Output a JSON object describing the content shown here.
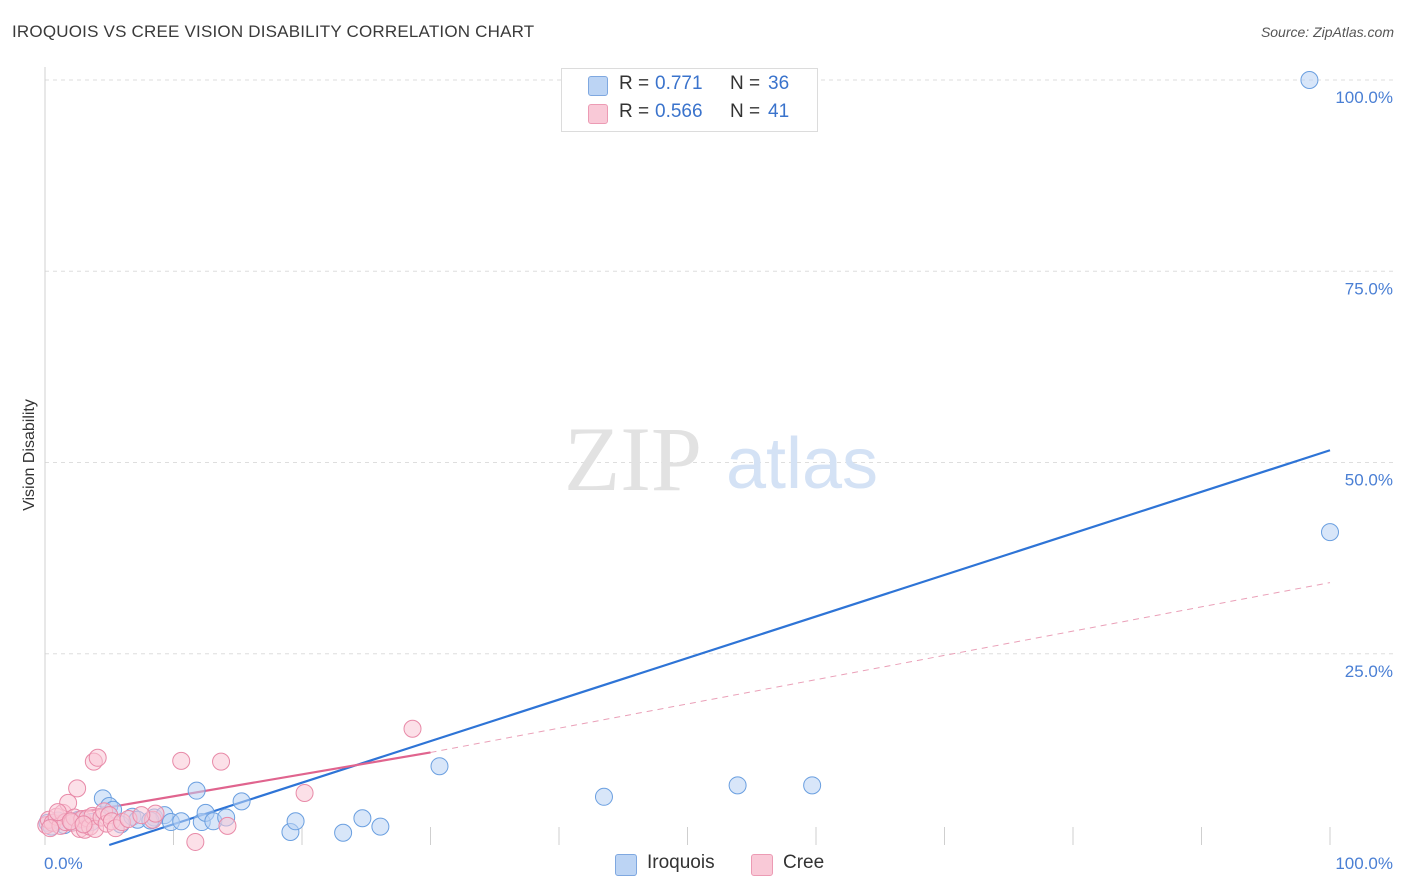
{
  "title": "IROQUOIS VS CREE VISION DISABILITY CORRELATION CHART",
  "source": "Source: ZipAtlas.com",
  "watermark": {
    "zip": "ZIP",
    "atlas": "atlas"
  },
  "legend": {
    "rows": [
      {
        "r_label": "R =",
        "r_value": "0.771",
        "n_label": "N =",
        "n_value": "36",
        "color": "#a9c8f2"
      },
      {
        "r_label": "R =",
        "r_value": "0.566",
        "n_label": "N =",
        "n_value": "41",
        "color": "#f7b8cb"
      }
    ]
  },
  "bottom_legend": [
    {
      "label": "Iroquois",
      "color": "#a9c8f2"
    },
    {
      "label": "Cree",
      "color": "#f7b8cb"
    }
  ],
  "chart_data": {
    "type": "scatter",
    "title": "IROQUOIS VS CREE VISION DISABILITY CORRELATION CHART",
    "xlabel": "",
    "ylabel": "Vision Disability",
    "xlim": [
      0,
      100
    ],
    "ylim": [
      0,
      100
    ],
    "x_tick_labels": [
      "0.0%",
      "100.0%"
    ],
    "y_tick_labels": [
      "100.0%",
      "75.0%",
      "50.0%",
      "25.0%"
    ],
    "y_tick_values": [
      100,
      75,
      50,
      25
    ],
    "grid": true,
    "series": [
      {
        "name": "Iroquois",
        "color": "#6a9fe0",
        "fill": "#b8d2f4",
        "points": [
          [
            0.2,
            2.9
          ],
          [
            1.0,
            3.2
          ],
          [
            1.5,
            2.6
          ],
          [
            2.2,
            3.0
          ],
          [
            3.1,
            2.7
          ],
          [
            3.6,
            3.0
          ],
          [
            4.5,
            6.1
          ],
          [
            5.0,
            5.1
          ],
          [
            5.3,
            4.6
          ],
          [
            5.9,
            2.7
          ],
          [
            6.8,
            3.7
          ],
          [
            7.2,
            3.3
          ],
          [
            8.5,
            3.6
          ],
          [
            9.3,
            3.9
          ],
          [
            9.8,
            3.0
          ],
          [
            10.6,
            3.1
          ],
          [
            11.8,
            7.1
          ],
          [
            12.2,
            3.0
          ],
          [
            12.5,
            4.2
          ],
          [
            13.1,
            3.1
          ],
          [
            14.1,
            3.6
          ],
          [
            15.3,
            5.7
          ],
          [
            19.1,
            1.7
          ],
          [
            19.5,
            3.1
          ],
          [
            23.2,
            1.6
          ],
          [
            24.7,
            3.5
          ],
          [
            26.1,
            2.4
          ],
          [
            30.7,
            10.3
          ],
          [
            43.5,
            6.3
          ],
          [
            53.9,
            7.8
          ],
          [
            59.7,
            7.8
          ],
          [
            98.4,
            100.0
          ],
          [
            100.0,
            40.9
          ],
          [
            0.5,
            2.4
          ],
          [
            2.6,
            3.3
          ],
          [
            8.2,
            3.2
          ]
        ]
      },
      {
        "name": "Cree",
        "color": "#e88aa8",
        "fill": "#f9c6d5",
        "points": [
          [
            0.1,
            2.6
          ],
          [
            0.3,
            3.3
          ],
          [
            0.6,
            2.9
          ],
          [
            0.9,
            3.7
          ],
          [
            1.2,
            2.5
          ],
          [
            1.4,
            4.2
          ],
          [
            1.6,
            3.0
          ],
          [
            1.8,
            5.5
          ],
          [
            2.1,
            2.9
          ],
          [
            2.3,
            3.6
          ],
          [
            2.5,
            7.4
          ],
          [
            2.7,
            2.1
          ],
          [
            2.9,
            3.4
          ],
          [
            3.1,
            2.0
          ],
          [
            3.3,
            3.5
          ],
          [
            3.5,
            2.4
          ],
          [
            3.7,
            3.8
          ],
          [
            3.8,
            10.9
          ],
          [
            3.9,
            2.1
          ],
          [
            4.1,
            11.4
          ],
          [
            4.4,
            3.6
          ],
          [
            4.6,
            4.4
          ],
          [
            4.8,
            2.8
          ],
          [
            5.0,
            3.9
          ],
          [
            5.2,
            3.1
          ],
          [
            5.5,
            2.2
          ],
          [
            6.0,
            3.0
          ],
          [
            8.4,
            3.3
          ],
          [
            8.6,
            4.1
          ],
          [
            10.6,
            11.0
          ],
          [
            11.7,
            0.4
          ],
          [
            13.7,
            10.9
          ],
          [
            14.2,
            2.5
          ],
          [
            20.2,
            6.8
          ],
          [
            28.6,
            15.2
          ],
          [
            0.4,
            2.2
          ],
          [
            1.0,
            4.3
          ],
          [
            2.0,
            3.1
          ],
          [
            3.0,
            2.7
          ],
          [
            6.5,
            3.4
          ],
          [
            7.5,
            3.9
          ]
        ]
      }
    ],
    "trend_lines": [
      {
        "series": "Iroquois",
        "from": [
          5,
          0
        ],
        "to": [
          100,
          51.6
        ],
        "style": "solid"
      },
      {
        "series": "Cree",
        "from": [
          0,
          3.5
        ],
        "to": [
          30,
          12.1
        ],
        "style": "solid"
      },
      {
        "series": "Cree",
        "from": [
          30,
          12.1
        ],
        "to": [
          100,
          34.3
        ],
        "style": "dashed"
      }
    ]
  }
}
